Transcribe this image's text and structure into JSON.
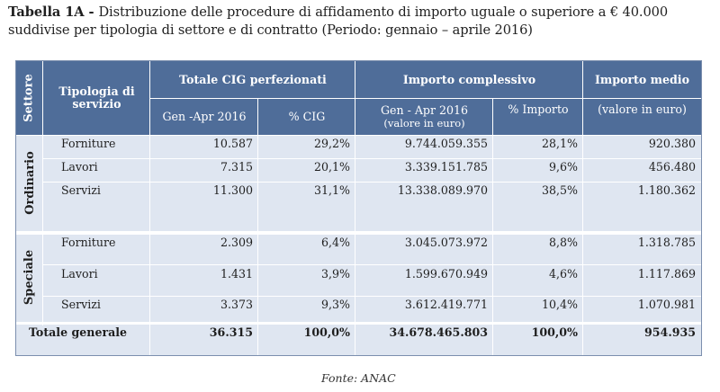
{
  "caption": {
    "label": "Tabella 1A - ",
    "text": "Distribuzione delle procedure di affidamento di importo uguale o superiore a € 40.000 suddivise per tipologia di settore e di contratto (Periodo: gennaio – aprile 2016)"
  },
  "headers": {
    "settore": "Settore",
    "tipologia": "Tipologia di servizio",
    "totale_cig": "Totale CIG perfezionati",
    "importo_complessivo": "Importo complessivo",
    "importo_medio": "Importo medio",
    "gen_apr": "Gen -Apr 2016",
    "pct_cig": "% CIG",
    "gen_apr_valore": "Gen - Apr 2016",
    "valore_in_euro_par": "(valore in euro)",
    "pct_importo": "% Importo",
    "valore_in_euro": "(valore in euro)"
  },
  "groups": [
    {
      "sector": "Ordinario",
      "rows": [
        {
          "tipo": "Forniture",
          "cig": "10.587",
          "pct_cig": "29,2%",
          "importo": "9.744.059.355",
          "pct_importo": "28,1%",
          "medio": "920.380"
        },
        {
          "tipo": "Lavori",
          "cig": "7.315",
          "pct_cig": "20,1%",
          "importo": "3.339.151.785",
          "pct_importo": "9,6%",
          "medio": "456.480"
        },
        {
          "tipo": "Servizi",
          "cig": "11.300",
          "pct_cig": "31,1%",
          "importo": "13.338.089.970",
          "pct_importo": "38,5%",
          "medio": "1.180.362"
        }
      ]
    },
    {
      "sector": "Speciale",
      "rows": [
        {
          "tipo": "Forniture",
          "cig": "2.309",
          "pct_cig": "6,4%",
          "importo": "3.045.073.972",
          "pct_importo": "8,8%",
          "medio": "1.318.785"
        },
        {
          "tipo": "Lavori",
          "cig": "1.431",
          "pct_cig": "3,9%",
          "importo": "1.599.670.949",
          "pct_importo": "4,6%",
          "medio": "1.117.869"
        },
        {
          "tipo": "Servizi",
          "cig": "3.373",
          "pct_cig": "9,3%",
          "importo": "3.612.419.771",
          "pct_importo": "10,4%",
          "medio": "1.070.981"
        }
      ]
    }
  ],
  "total": {
    "label": "Totale generale",
    "cig": "36.315",
    "pct_cig": "100,0%",
    "importo": "34.678.465.803",
    "pct_importo": "100,0%",
    "medio": "954.935"
  },
  "source": "Fonte: ANAC",
  "colors": {
    "header_bg": "#4f6d99",
    "body_bg": "#dfe6f1",
    "border": "#7c8fae"
  }
}
